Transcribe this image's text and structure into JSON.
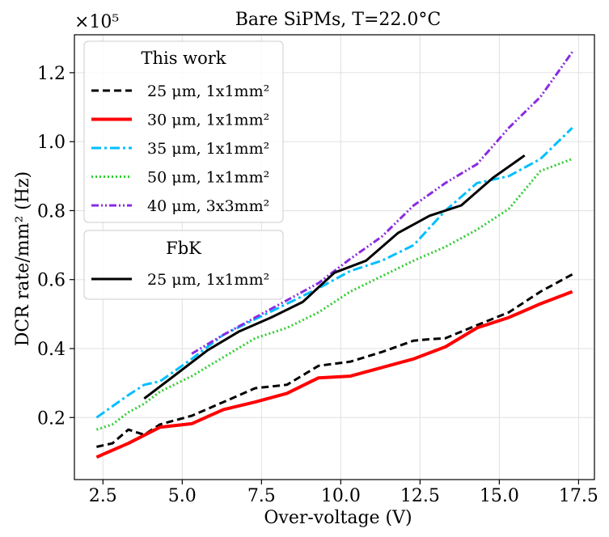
{
  "chart_data": {
    "type": "line",
    "title": "Bare SiPMs, T=22.0°C",
    "xlabel": "Over-voltage (V)",
    "ylabel": "DCR rate/mm² (Hz)",
    "y_multiplier": "×10⁵",
    "xlim": [
      1.6,
      18.0
    ],
    "ylim": [
      0.02,
      1.31
    ],
    "xticks": [
      2.5,
      5.0,
      7.5,
      10.0,
      12.5,
      15.0,
      17.5
    ],
    "xtick_labels": [
      "2.5",
      "5.0",
      "7.5",
      "10.0",
      "12.5",
      "15.0",
      "17.5"
    ],
    "yticks": [
      0.2,
      0.4,
      0.6,
      0.8,
      1.0,
      1.2
    ],
    "ytick_labels": [
      "0.2",
      "0.4",
      "0.6",
      "0.8",
      "1.0",
      "1.2"
    ],
    "grid": true,
    "legend_groups": [
      {
        "title": "This work",
        "entries": [
          "25 μm, 1x1mm²",
          "30 μm, 1x1mm²",
          "35 μm, 1x1mm²",
          "50 μm, 1x1mm²",
          "40 μm, 3x3mm²"
        ],
        "series_index": [
          0,
          1,
          2,
          3,
          4
        ]
      },
      {
        "title": "FbK",
        "entries": [
          "25 μm, 1x1mm²"
        ],
        "series_index": [
          5
        ]
      }
    ],
    "series": [
      {
        "name": "25 μm, 1x1mm²",
        "color": "#000000",
        "dash": "9,5",
        "width": 3,
        "x": [
          2.3,
          2.8,
          3.3,
          3.8,
          4.3,
          5.3,
          6.3,
          7.3,
          8.3,
          9.3,
          10.3,
          11.3,
          12.3,
          12.8,
          13.3,
          14.3,
          15.3,
          16.3,
          17.3
        ],
        "y": [
          0.115,
          0.125,
          0.165,
          0.15,
          0.18,
          0.205,
          0.245,
          0.285,
          0.295,
          0.35,
          0.362,
          0.39,
          0.423,
          0.427,
          0.43,
          0.468,
          0.505,
          0.565,
          0.615
        ]
      },
      {
        "name": "30 μm, 1x1mm²",
        "color": "#ff0000",
        "dash": "",
        "width": 4,
        "x": [
          2.3,
          3.3,
          4.3,
          5.3,
          6.3,
          7.3,
          8.3,
          9.3,
          10.3,
          11.3,
          12.3,
          13.3,
          14.3,
          15.3,
          16.3,
          17.3
        ],
        "y": [
          0.085,
          0.125,
          0.172,
          0.182,
          0.223,
          0.245,
          0.27,
          0.315,
          0.32,
          0.345,
          0.37,
          0.405,
          0.46,
          0.49,
          0.53,
          0.565
        ]
      },
      {
        "name": "35 μm, 1x1mm²",
        "color": "#00bfff",
        "dash": "12,4,3,4",
        "width": 3,
        "x": [
          2.3,
          3.3,
          3.8,
          4.3,
          5.3,
          6.3,
          7.3,
          8.3,
          9.3,
          10.3,
          11.3,
          12.3,
          13.3,
          14.3,
          15.3,
          16.3,
          17.3
        ],
        "y": [
          0.2,
          0.265,
          0.295,
          0.305,
          0.37,
          0.44,
          0.485,
          0.53,
          0.575,
          0.625,
          0.655,
          0.7,
          0.8,
          0.88,
          0.9,
          0.95,
          1.04
        ]
      },
      {
        "name": "50 μm, 1x1mm²",
        "color": "#32cd32",
        "dash": "2,3",
        "width": 3,
        "x": [
          2.3,
          2.8,
          3.3,
          3.8,
          4.3,
          5.3,
          6.3,
          7.3,
          8.3,
          9.3,
          10.3,
          11.3,
          12.3,
          13.3,
          14.3,
          15.3,
          16.3,
          17.3
        ],
        "y": [
          0.165,
          0.18,
          0.215,
          0.24,
          0.275,
          0.32,
          0.375,
          0.43,
          0.46,
          0.505,
          0.565,
          0.61,
          0.655,
          0.695,
          0.745,
          0.805,
          0.915,
          0.95
        ]
      },
      {
        "name": "40 μm, 3x3mm²",
        "color": "#8a2be2",
        "dash": "9,3,2,3,2,3",
        "width": 3,
        "x": [
          5.3,
          6.3,
          7.3,
          8.3,
          9.3,
          10.3,
          11.3,
          12.3,
          13.3,
          14.3,
          15.3,
          16.3,
          17.3
        ],
        "y": [
          0.385,
          0.44,
          0.49,
          0.54,
          0.59,
          0.66,
          0.725,
          0.815,
          0.88,
          0.935,
          1.04,
          1.13,
          1.26
        ]
      },
      {
        "name": "25 μm, 1x1mm²",
        "color": "#000000",
        "dash": "",
        "width": 3,
        "x": [
          3.8,
          4.8,
          5.8,
          6.8,
          7.8,
          8.8,
          9.8,
          10.8,
          11.8,
          12.8,
          13.8,
          14.8,
          15.8
        ],
        "y": [
          0.255,
          0.325,
          0.395,
          0.45,
          0.49,
          0.535,
          0.62,
          0.655,
          0.735,
          0.785,
          0.815,
          0.895,
          0.96
        ]
      }
    ]
  }
}
